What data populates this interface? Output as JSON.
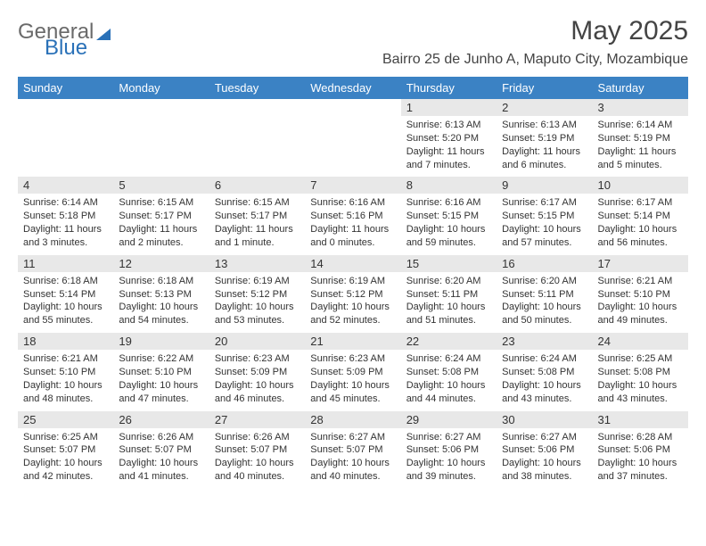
{
  "brand": {
    "word1": "General",
    "word2": "Blue"
  },
  "title": "May 2025",
  "location": "Bairro 25 de Junho A, Maputo City, Mozambique",
  "colors": {
    "header_bg": "#3b82c4",
    "header_text": "#ffffff",
    "daynum_bg": "#e8e8e8",
    "text": "#333333",
    "brand_gray": "#6a6a6a",
    "brand_blue": "#2a71b8",
    "page_bg": "#ffffff",
    "rule": "#d9d9d9"
  },
  "typography": {
    "title_fontsize": 30,
    "location_fontsize": 16,
    "header_fontsize": 13,
    "body_fontsize": 11
  },
  "days": [
    "Sunday",
    "Monday",
    "Tuesday",
    "Wednesday",
    "Thursday",
    "Friday",
    "Saturday"
  ],
  "weeks": [
    [
      null,
      null,
      null,
      null,
      {
        "n": "1",
        "sr": "Sunrise: 6:13 AM",
        "ss": "Sunset: 5:20 PM",
        "d1": "Daylight: 11 hours",
        "d2": "and 7 minutes."
      },
      {
        "n": "2",
        "sr": "Sunrise: 6:13 AM",
        "ss": "Sunset: 5:19 PM",
        "d1": "Daylight: 11 hours",
        "d2": "and 6 minutes."
      },
      {
        "n": "3",
        "sr": "Sunrise: 6:14 AM",
        "ss": "Sunset: 5:19 PM",
        "d1": "Daylight: 11 hours",
        "d2": "and 5 minutes."
      }
    ],
    [
      {
        "n": "4",
        "sr": "Sunrise: 6:14 AM",
        "ss": "Sunset: 5:18 PM",
        "d1": "Daylight: 11 hours",
        "d2": "and 3 minutes."
      },
      {
        "n": "5",
        "sr": "Sunrise: 6:15 AM",
        "ss": "Sunset: 5:17 PM",
        "d1": "Daylight: 11 hours",
        "d2": "and 2 minutes."
      },
      {
        "n": "6",
        "sr": "Sunrise: 6:15 AM",
        "ss": "Sunset: 5:17 PM",
        "d1": "Daylight: 11 hours",
        "d2": "and 1 minute."
      },
      {
        "n": "7",
        "sr": "Sunrise: 6:16 AM",
        "ss": "Sunset: 5:16 PM",
        "d1": "Daylight: 11 hours",
        "d2": "and 0 minutes."
      },
      {
        "n": "8",
        "sr": "Sunrise: 6:16 AM",
        "ss": "Sunset: 5:15 PM",
        "d1": "Daylight: 10 hours",
        "d2": "and 59 minutes."
      },
      {
        "n": "9",
        "sr": "Sunrise: 6:17 AM",
        "ss": "Sunset: 5:15 PM",
        "d1": "Daylight: 10 hours",
        "d2": "and 57 minutes."
      },
      {
        "n": "10",
        "sr": "Sunrise: 6:17 AM",
        "ss": "Sunset: 5:14 PM",
        "d1": "Daylight: 10 hours",
        "d2": "and 56 minutes."
      }
    ],
    [
      {
        "n": "11",
        "sr": "Sunrise: 6:18 AM",
        "ss": "Sunset: 5:14 PM",
        "d1": "Daylight: 10 hours",
        "d2": "and 55 minutes."
      },
      {
        "n": "12",
        "sr": "Sunrise: 6:18 AM",
        "ss": "Sunset: 5:13 PM",
        "d1": "Daylight: 10 hours",
        "d2": "and 54 minutes."
      },
      {
        "n": "13",
        "sr": "Sunrise: 6:19 AM",
        "ss": "Sunset: 5:12 PM",
        "d1": "Daylight: 10 hours",
        "d2": "and 53 minutes."
      },
      {
        "n": "14",
        "sr": "Sunrise: 6:19 AM",
        "ss": "Sunset: 5:12 PM",
        "d1": "Daylight: 10 hours",
        "d2": "and 52 minutes."
      },
      {
        "n": "15",
        "sr": "Sunrise: 6:20 AM",
        "ss": "Sunset: 5:11 PM",
        "d1": "Daylight: 10 hours",
        "d2": "and 51 minutes."
      },
      {
        "n": "16",
        "sr": "Sunrise: 6:20 AM",
        "ss": "Sunset: 5:11 PM",
        "d1": "Daylight: 10 hours",
        "d2": "and 50 minutes."
      },
      {
        "n": "17",
        "sr": "Sunrise: 6:21 AM",
        "ss": "Sunset: 5:10 PM",
        "d1": "Daylight: 10 hours",
        "d2": "and 49 minutes."
      }
    ],
    [
      {
        "n": "18",
        "sr": "Sunrise: 6:21 AM",
        "ss": "Sunset: 5:10 PM",
        "d1": "Daylight: 10 hours",
        "d2": "and 48 minutes."
      },
      {
        "n": "19",
        "sr": "Sunrise: 6:22 AM",
        "ss": "Sunset: 5:10 PM",
        "d1": "Daylight: 10 hours",
        "d2": "and 47 minutes."
      },
      {
        "n": "20",
        "sr": "Sunrise: 6:23 AM",
        "ss": "Sunset: 5:09 PM",
        "d1": "Daylight: 10 hours",
        "d2": "and 46 minutes."
      },
      {
        "n": "21",
        "sr": "Sunrise: 6:23 AM",
        "ss": "Sunset: 5:09 PM",
        "d1": "Daylight: 10 hours",
        "d2": "and 45 minutes."
      },
      {
        "n": "22",
        "sr": "Sunrise: 6:24 AM",
        "ss": "Sunset: 5:08 PM",
        "d1": "Daylight: 10 hours",
        "d2": "and 44 minutes."
      },
      {
        "n": "23",
        "sr": "Sunrise: 6:24 AM",
        "ss": "Sunset: 5:08 PM",
        "d1": "Daylight: 10 hours",
        "d2": "and 43 minutes."
      },
      {
        "n": "24",
        "sr": "Sunrise: 6:25 AM",
        "ss": "Sunset: 5:08 PM",
        "d1": "Daylight: 10 hours",
        "d2": "and 43 minutes."
      }
    ],
    [
      {
        "n": "25",
        "sr": "Sunrise: 6:25 AM",
        "ss": "Sunset: 5:07 PM",
        "d1": "Daylight: 10 hours",
        "d2": "and 42 minutes."
      },
      {
        "n": "26",
        "sr": "Sunrise: 6:26 AM",
        "ss": "Sunset: 5:07 PM",
        "d1": "Daylight: 10 hours",
        "d2": "and 41 minutes."
      },
      {
        "n": "27",
        "sr": "Sunrise: 6:26 AM",
        "ss": "Sunset: 5:07 PM",
        "d1": "Daylight: 10 hours",
        "d2": "and 40 minutes."
      },
      {
        "n": "28",
        "sr": "Sunrise: 6:27 AM",
        "ss": "Sunset: 5:07 PM",
        "d1": "Daylight: 10 hours",
        "d2": "and 40 minutes."
      },
      {
        "n": "29",
        "sr": "Sunrise: 6:27 AM",
        "ss": "Sunset: 5:06 PM",
        "d1": "Daylight: 10 hours",
        "d2": "and 39 minutes."
      },
      {
        "n": "30",
        "sr": "Sunrise: 6:27 AM",
        "ss": "Sunset: 5:06 PM",
        "d1": "Daylight: 10 hours",
        "d2": "and 38 minutes."
      },
      {
        "n": "31",
        "sr": "Sunrise: 6:28 AM",
        "ss": "Sunset: 5:06 PM",
        "d1": "Daylight: 10 hours",
        "d2": "and 37 minutes."
      }
    ]
  ]
}
